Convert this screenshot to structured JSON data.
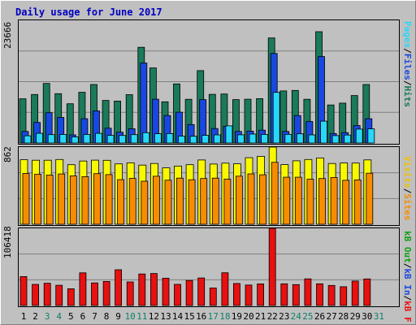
{
  "title": "Daily usage for June 2017",
  "colors": {
    "hits": "#1a7a5a",
    "files": "#1848e0",
    "pages": "#28d8f8",
    "visits": "#f8f800",
    "sites": "#f88c00",
    "kbf": "#e81010",
    "kbin": "#1848e0",
    "kbout": "#10a010",
    "weekend": "#10806a",
    "weekday": "#000000"
  },
  "axis_labels": {
    "hits_max": "23666",
    "visits_max": "862",
    "kb_max": "106418"
  },
  "legend": {
    "top": [
      "Pages",
      "/",
      "Files",
      "/",
      "Hits"
    ],
    "middle": [
      "Visits",
      "/",
      "Sites"
    ],
    "bottom": [
      "kB F",
      "/",
      "kB In",
      "/",
      "kB Out"
    ]
  },
  "chart_data": {
    "type": "bar",
    "categories": [
      "1",
      "2",
      "3",
      "4",
      "5",
      "6",
      "7",
      "8",
      "9",
      "10",
      "11",
      "12",
      "13",
      "14",
      "15",
      "16",
      "17",
      "18",
      "19",
      "20",
      "21",
      "22",
      "23",
      "24",
      "25",
      "26",
      "27",
      "28",
      "29",
      "30",
      "31"
    ],
    "weekend_days": [
      "3",
      "4",
      "10",
      "11",
      "17",
      "18",
      "24",
      "25",
      "31"
    ],
    "panels": [
      {
        "name": "hits-files-pages",
        "ylim": [
          0,
          23666
        ],
        "series": [
          {
            "name": "Hits",
            "values": [
              8530,
              9360,
              11490,
              9510,
              7570,
              9780,
              11280,
              8220,
              8080,
              9330,
              18470,
              14480,
              7950,
              11390,
              8430,
              13970,
              9390,
              9450,
              8370,
              8450,
              8550,
              20270,
              10050,
              10140,
              8430,
              21470,
              7340,
              7690,
              9160,
              11290,
              0
            ]
          },
          {
            "name": "Files",
            "values": [
              2230,
              3970,
              5840,
              4940,
              1570,
              4680,
              6190,
              2850,
              2080,
              2740,
              15440,
              8440,
              5300,
              5940,
              3560,
              8370,
              2790,
              3210,
              2220,
              2290,
              2470,
              17270,
              2220,
              5300,
              4160,
              16670,
              1840,
              2000,
              3370,
              4690,
              0
            ]
          },
          {
            "name": "Pages",
            "values": [
              1400,
              1870,
              1620,
              1650,
              1180,
              1640,
              1860,
              1480,
              1450,
              1610,
              1990,
              1790,
              1820,
              1340,
              1300,
              1470,
              1570,
              3310,
              1580,
              1720,
              1640,
              9770,
              1660,
              1770,
              1560,
              4220,
              1420,
              1540,
              2680,
              2730,
              0
            ]
          }
        ]
      },
      {
        "name": "visits-sites",
        "ylim": [
          0,
          862
        ],
        "series": [
          {
            "name": "Visits",
            "values": [
              720,
              715,
              715,
              723,
              665,
              706,
              716,
              714,
              674,
              686,
              661,
              679,
              630,
              650,
              665,
              718,
              672,
              682,
              675,
              743,
              759,
              862,
              666,
              709,
              723,
              740,
              679,
              684,
              683,
              719,
              0
            ]
          },
          {
            "name": "Sites",
            "values": [
              567,
              558,
              549,
              562,
              541,
              532,
              565,
              554,
              498,
              512,
              481,
              536,
              492,
              515,
              497,
              511,
              515,
              504,
              537,
              563,
              553,
              691,
              525,
              525,
              504,
              511,
              522,
              491,
              495,
              570,
              0
            ]
          }
        ]
      },
      {
        "name": "kb",
        "ylim": [
          0,
          106418
        ],
        "series": [
          {
            "name": "kB F",
            "values": [
              39860,
              29160,
              30640,
              27860,
              23070,
              45080,
              31110,
              33160,
              49310,
              32510,
              43460,
              44140,
              37590,
              29130,
              34480,
              37990,
              24200,
              45180,
              30370,
              28230,
              29830,
              106418,
              29930,
              28830,
              36760,
              29930,
              27640,
              25840,
              33670,
              36620,
              0
            ]
          }
        ]
      }
    ]
  }
}
